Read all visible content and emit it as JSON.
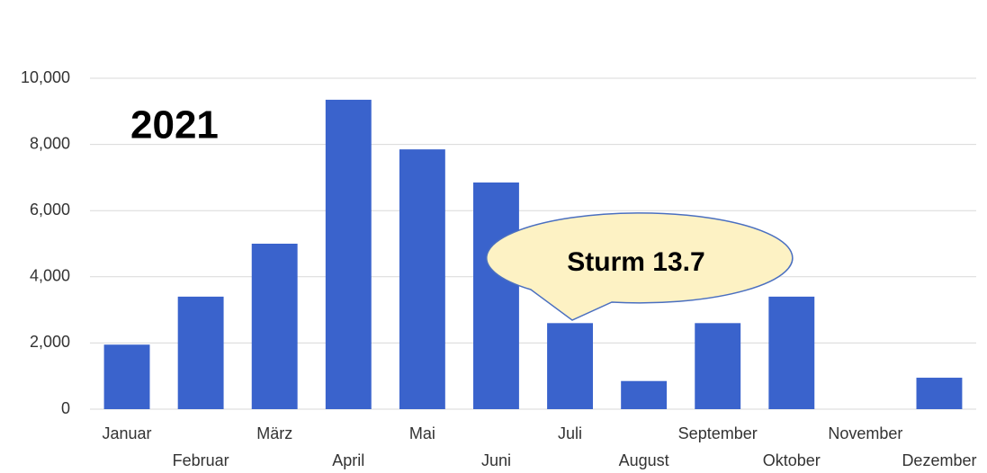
{
  "chart_data": {
    "type": "bar",
    "annotations": [
      "2021",
      "Sturm 13.7"
    ],
    "categories": [
      "Januar",
      "Februar",
      "März",
      "April",
      "Mai",
      "Juni",
      "Juli",
      "August",
      "September",
      "Oktober",
      "November",
      "Dezember"
    ],
    "values": [
      1950,
      3400,
      5000,
      9350,
      7850,
      6850,
      2600,
      850,
      2600,
      3400,
      0,
      950
    ],
    "color": "#3a63cc",
    "ylim": [
      0,
      10000
    ],
    "yticks": [
      0,
      {
        "value": 2000,
        "label": "2,000"
      },
      {
        "value": 4000,
        "label": "4,000"
      },
      {
        "value": 6000,
        "label": "6,000"
      },
      {
        "value": 8000,
        "label": "8,000"
      },
      {
        "value": 10000,
        "label": "10,000"
      }
    ],
    "grid": true
  }
}
